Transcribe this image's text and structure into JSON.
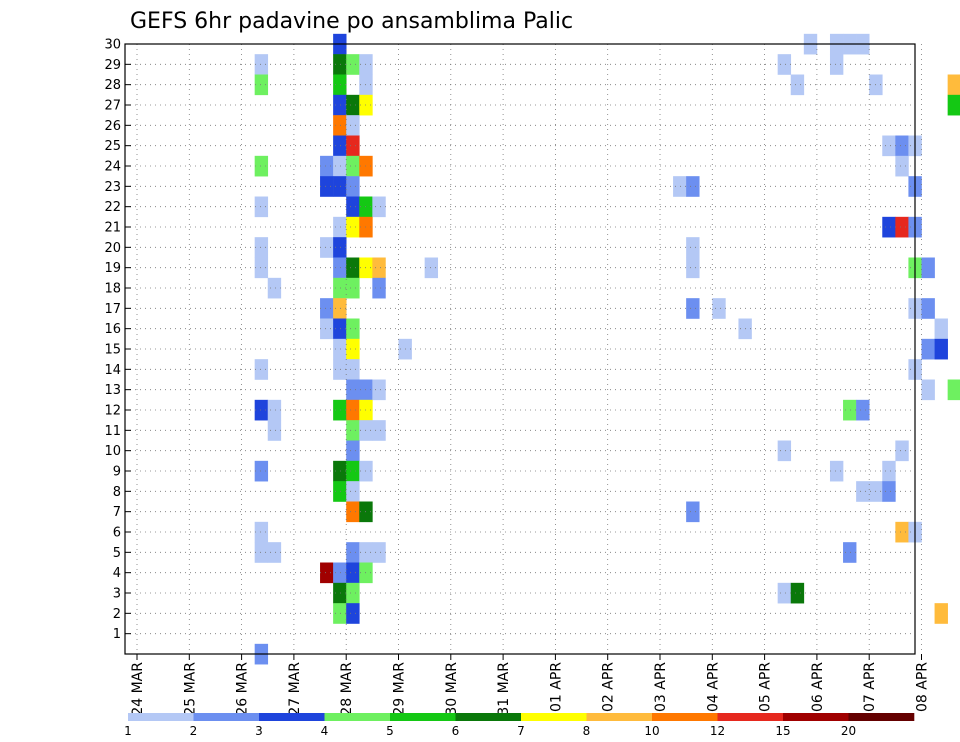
{
  "chart_data": {
    "type": "heatmap",
    "title": "GEFS 6hr padavine po ansamblima Palic",
    "y_ticks": [
      "1",
      "2",
      "3",
      "4",
      "5",
      "6",
      "7",
      "8",
      "9",
      "10",
      "11",
      "12",
      "13",
      "14",
      "15",
      "16",
      "17",
      "18",
      "19",
      "20",
      "21",
      "22",
      "23",
      "24",
      "25",
      "26",
      "27",
      "28",
      "29",
      "30"
    ],
    "ylim": [
      0,
      30
    ],
    "x_ticks": [
      "24 MAR",
      "25 MAR",
      "26 MAR",
      "27 MAR",
      "28 MAR",
      "29 MAR",
      "30 MAR",
      "31 MAR",
      "01 APR",
      "02 APR",
      "03 APR",
      "04 APR",
      "05 APR",
      "06 APR",
      "07 APR",
      "08 APR"
    ],
    "steps_per_day": 4,
    "grid": true,
    "colorbar": {
      "position": "bottom",
      "labels": [
        "1",
        "2",
        "3",
        "4",
        "5",
        "6",
        "7",
        "8",
        "10",
        "12",
        "15",
        "20"
      ],
      "colors": [
        "#b4c8f5",
        "#6c8ff0",
        "#1e44dc",
        "#6ef060",
        "#14c814",
        "#0a780a",
        "#ffff00",
        "#ffbb3c",
        "#ff7800",
        "#e6281e",
        "#a00000",
        "#640000"
      ]
    },
    "cells": [
      {
        "m": 30,
        "s": 15,
        "c": 3
      },
      {
        "m": 30,
        "s": 51,
        "c": 1
      },
      {
        "m": 30,
        "s": 53,
        "c": 1
      },
      {
        "m": 30,
        "s": 54,
        "c": 1
      },
      {
        "m": 30,
        "s": 55,
        "c": 1
      },
      {
        "m": 30,
        "s": 92,
        "c": 1
      },
      {
        "m": 29,
        "s": 9,
        "c": 1
      },
      {
        "m": 29,
        "s": 15,
        "c": 6
      },
      {
        "m": 29,
        "s": 16,
        "c": 4
      },
      {
        "m": 29,
        "s": 17,
        "c": 1
      },
      {
        "m": 29,
        "s": 49,
        "c": 1
      },
      {
        "m": 29,
        "s": 53,
        "c": 1
      },
      {
        "m": 29,
        "s": 64,
        "c": 4
      },
      {
        "m": 29,
        "s": 65,
        "c": 1
      },
      {
        "m": 29,
        "s": 77,
        "c": 1
      },
      {
        "m": 29,
        "s": 78,
        "c": 3
      },
      {
        "m": 29,
        "s": 80,
        "c": 2
      },
      {
        "m": 29,
        "s": 90,
        "c": 1
      },
      {
        "m": 29,
        "s": 96,
        "c": 2
      },
      {
        "m": 29,
        "s": 97,
        "c": 3
      },
      {
        "m": 29,
        "s": 98,
        "c": 1
      },
      {
        "m": 29,
        "s": 100,
        "c": 2
      },
      {
        "m": 28,
        "s": 9,
        "c": 4
      },
      {
        "m": 28,
        "s": 15,
        "c": 5
      },
      {
        "m": 28,
        "s": 17,
        "c": 1
      },
      {
        "m": 28,
        "s": 50,
        "c": 1
      },
      {
        "m": 28,
        "s": 56,
        "c": 1
      },
      {
        "m": 28,
        "s": 62,
        "c": 8
      },
      {
        "m": 28,
        "s": 63,
        "c": 8
      },
      {
        "m": 28,
        "s": 67,
        "c": 1
      },
      {
        "m": 28,
        "s": 97,
        "c": 2
      },
      {
        "m": 28,
        "s": 100,
        "c": 2
      },
      {
        "m": 27,
        "s": 15,
        "c": 3
      },
      {
        "m": 27,
        "s": 16,
        "c": 6
      },
      {
        "m": 27,
        "s": 17,
        "c": 7
      },
      {
        "m": 27,
        "s": 62,
        "c": 5
      },
      {
        "m": 26,
        "s": 15,
        "c": 9
      },
      {
        "m": 26,
        "s": 16,
        "c": 1
      },
      {
        "m": 26,
        "s": 69,
        "c": 6
      },
      {
        "m": 25,
        "s": 15,
        "c": 3
      },
      {
        "m": 25,
        "s": 16,
        "c": 10
      },
      {
        "m": 25,
        "s": 57,
        "c": 1
      },
      {
        "m": 25,
        "s": 58,
        "c": 2
      },
      {
        "m": 25,
        "s": 59,
        "c": 1
      },
      {
        "m": 24,
        "s": 9,
        "c": 4
      },
      {
        "m": 24,
        "s": 14,
        "c": 2
      },
      {
        "m": 24,
        "s": 15,
        "c": 1
      },
      {
        "m": 24,
        "s": 16,
        "c": 4
      },
      {
        "m": 24,
        "s": 17,
        "c": 9
      },
      {
        "m": 24,
        "s": 58,
        "c": 1
      },
      {
        "m": 24,
        "s": 84,
        "c": 3
      },
      {
        "m": 24,
        "s": 88,
        "c": 1
      },
      {
        "m": 23,
        "s": 14,
        "c": 3
      },
      {
        "m": 23,
        "s": 15,
        "c": 3
      },
      {
        "m": 23,
        "s": 16,
        "c": 2
      },
      {
        "m": 23,
        "s": 41,
        "c": 1
      },
      {
        "m": 23,
        "s": 42,
        "c": 2
      },
      {
        "m": 23,
        "s": 59,
        "c": 2
      },
      {
        "m": 23,
        "s": 76,
        "c": 2
      },
      {
        "m": 23,
        "s": 84,
        "c": 1
      },
      {
        "m": 23,
        "s": 85,
        "c": 1
      },
      {
        "m": 22,
        "s": 9,
        "c": 1
      },
      {
        "m": 22,
        "s": 16,
        "c": 3
      },
      {
        "m": 22,
        "s": 17,
        "c": 5
      },
      {
        "m": 22,
        "s": 18,
        "c": 1
      },
      {
        "m": 22,
        "s": 66,
        "c": 1
      },
      {
        "m": 22,
        "s": 97,
        "c": 2
      },
      {
        "m": 22,
        "s": 98,
        "c": 3
      },
      {
        "m": 21,
        "s": 15,
        "c": 1
      },
      {
        "m": 21,
        "s": 16,
        "c": 7
      },
      {
        "m": 21,
        "s": 17,
        "c": 9
      },
      {
        "m": 21,
        "s": 57,
        "c": 3
      },
      {
        "m": 21,
        "s": 58,
        "c": 10
      },
      {
        "m": 21,
        "s": 59,
        "c": 2
      },
      {
        "m": 21,
        "s": 82,
        "c": 1
      },
      {
        "m": 20,
        "s": 9,
        "c": 1
      },
      {
        "m": 20,
        "s": 14,
        "c": 1
      },
      {
        "m": 20,
        "s": 15,
        "c": 3
      },
      {
        "m": 20,
        "s": 42,
        "c": 1
      },
      {
        "m": 20,
        "s": 65,
        "c": 3
      },
      {
        "m": 20,
        "s": 66,
        "c": 2
      },
      {
        "m": 20,
        "s": 67,
        "c": 2
      },
      {
        "m": 19,
        "s": 9,
        "c": 1
      },
      {
        "m": 19,
        "s": 15,
        "c": 2
      },
      {
        "m": 19,
        "s": 16,
        "c": 6
      },
      {
        "m": 19,
        "s": 17,
        "c": 7
      },
      {
        "m": 19,
        "s": 18,
        "c": 8
      },
      {
        "m": 19,
        "s": 22,
        "c": 1
      },
      {
        "m": 19,
        "s": 42,
        "c": 1
      },
      {
        "m": 19,
        "s": 59,
        "c": 4
      },
      {
        "m": 19,
        "s": 60,
        "c": 2
      },
      {
        "m": 19,
        "s": 88,
        "c": 1
      },
      {
        "m": 19,
        "s": 89,
        "c": 3
      },
      {
        "m": 19,
        "s": 91,
        "c": 1
      },
      {
        "m": 18,
        "s": 10,
        "c": 1
      },
      {
        "m": 18,
        "s": 15,
        "c": 4
      },
      {
        "m": 18,
        "s": 16,
        "c": 4
      },
      {
        "m": 18,
        "s": 18,
        "c": 2
      },
      {
        "m": 18,
        "s": 75,
        "c": 2
      },
      {
        "m": 18,
        "s": 76,
        "c": 11
      },
      {
        "m": 18,
        "s": 77,
        "c": 12
      },
      {
        "m": 18,
        "s": 78,
        "c": 11
      },
      {
        "m": 18,
        "s": 79,
        "c": 1
      },
      {
        "m": 18,
        "s": 82,
        "c": 6
      },
      {
        "m": 18,
        "s": 83,
        "c": 5
      },
      {
        "m": 17,
        "s": 14,
        "c": 2
      },
      {
        "m": 17,
        "s": 15,
        "c": 8
      },
      {
        "m": 17,
        "s": 42,
        "c": 2
      },
      {
        "m": 17,
        "s": 44,
        "c": 1
      },
      {
        "m": 17,
        "s": 59,
        "c": 1
      },
      {
        "m": 17,
        "s": 60,
        "c": 2
      },
      {
        "m": 17,
        "s": 66,
        "c": 1
      },
      {
        "m": 17,
        "s": 97,
        "c": 2
      },
      {
        "m": 17,
        "s": 98,
        "c": 3
      },
      {
        "m": 17,
        "s": 99,
        "c": 2
      },
      {
        "m": 16,
        "s": 14,
        "c": 1
      },
      {
        "m": 16,
        "s": 15,
        "c": 3
      },
      {
        "m": 16,
        "s": 16,
        "c": 4
      },
      {
        "m": 16,
        "s": 46,
        "c": 1
      },
      {
        "m": 16,
        "s": 61,
        "c": 1
      },
      {
        "m": 16,
        "s": 66,
        "c": 1
      },
      {
        "m": 16,
        "s": 67,
        "c": 7
      },
      {
        "m": 16,
        "s": 97,
        "c": 5
      },
      {
        "m": 16,
        "s": 98,
        "c": 1
      },
      {
        "m": 15,
        "s": 15,
        "c": 1
      },
      {
        "m": 15,
        "s": 16,
        "c": 7
      },
      {
        "m": 15,
        "s": 20,
        "c": 1
      },
      {
        "m": 15,
        "s": 60,
        "c": 2
      },
      {
        "m": 15,
        "s": 61,
        "c": 3
      },
      {
        "m": 15,
        "s": 66,
        "c": 9
      },
      {
        "m": 15,
        "s": 67,
        "c": 2
      },
      {
        "m": 14,
        "s": 9,
        "c": 1
      },
      {
        "m": 14,
        "s": 15,
        "c": 1
      },
      {
        "m": 14,
        "s": 16,
        "c": 1
      },
      {
        "m": 14,
        "s": 59,
        "c": 1
      },
      {
        "m": 13,
        "s": 16,
        "c": 2
      },
      {
        "m": 13,
        "s": 17,
        "c": 2
      },
      {
        "m": 13,
        "s": 18,
        "c": 1
      },
      {
        "m": 13,
        "s": 60,
        "c": 1
      },
      {
        "m": 13,
        "s": 62,
        "c": 4
      },
      {
        "m": 13,
        "s": 63,
        "c": 6
      },
      {
        "m": 13,
        "s": 64,
        "c": 2
      },
      {
        "m": 12,
        "s": 9,
        "c": 3
      },
      {
        "m": 12,
        "s": 10,
        "c": 1
      },
      {
        "m": 12,
        "s": 15,
        "c": 5
      },
      {
        "m": 12,
        "s": 16,
        "c": 9
      },
      {
        "m": 12,
        "s": 17,
        "c": 7
      },
      {
        "m": 12,
        "s": 54,
        "c": 4
      },
      {
        "m": 12,
        "s": 55,
        "c": 2
      },
      {
        "m": 12,
        "s": 63,
        "c": 1
      },
      {
        "m": 12,
        "s": 76,
        "c": 6
      },
      {
        "m": 12,
        "s": 81,
        "c": 11
      },
      {
        "m": 12,
        "s": 82,
        "c": 7
      },
      {
        "m": 12,
        "s": 83,
        "c": 1
      },
      {
        "m": 11,
        "s": 10,
        "c": 1
      },
      {
        "m": 11,
        "s": 16,
        "c": 4
      },
      {
        "m": 11,
        "s": 17,
        "c": 1
      },
      {
        "m": 11,
        "s": 18,
        "c": 1
      },
      {
        "m": 11,
        "s": 93,
        "c": 1
      },
      {
        "m": 11,
        "s": 97,
        "c": 11
      },
      {
        "m": 11,
        "s": 98,
        "c": 7
      },
      {
        "m": 10,
        "s": 16,
        "c": 2
      },
      {
        "m": 10,
        "s": 49,
        "c": 1
      },
      {
        "m": 10,
        "s": 58,
        "c": 1
      },
      {
        "m": 10,
        "s": 90,
        "c": 5
      },
      {
        "m": 10,
        "s": 91,
        "c": 1
      },
      {
        "m": 9,
        "s": 9,
        "c": 2
      },
      {
        "m": 9,
        "s": 15,
        "c": 6
      },
      {
        "m": 9,
        "s": 16,
        "c": 5
      },
      {
        "m": 9,
        "s": 17,
        "c": 1
      },
      {
        "m": 9,
        "s": 53,
        "c": 1
      },
      {
        "m": 9,
        "s": 57,
        "c": 1
      },
      {
        "m": 9,
        "s": 91,
        "c": 1
      },
      {
        "m": 9,
        "s": 97,
        "c": 2
      },
      {
        "m": 9,
        "s": 98,
        "c": 1
      },
      {
        "m": 9,
        "s": 99,
        "c": 1
      },
      {
        "m": 9,
        "s": 102,
        "c": 1
      },
      {
        "m": 8,
        "s": 15,
        "c": 5
      },
      {
        "m": 8,
        "s": 16,
        "c": 1
      },
      {
        "m": 8,
        "s": 55,
        "c": 1
      },
      {
        "m": 8,
        "s": 56,
        "c": 1
      },
      {
        "m": 8,
        "s": 57,
        "c": 2
      },
      {
        "m": 8,
        "s": 70,
        "c": 3
      },
      {
        "m": 8,
        "s": 71,
        "c": 1
      },
      {
        "m": 8,
        "s": 91,
        "c": 5
      },
      {
        "m": 7,
        "s": 16,
        "c": 9
      },
      {
        "m": 7,
        "s": 17,
        "c": 6
      },
      {
        "m": 7,
        "s": 42,
        "c": 2
      },
      {
        "m": 7,
        "s": 88,
        "c": 1
      },
      {
        "m": 6,
        "s": 9,
        "c": 1
      },
      {
        "m": 6,
        "s": 58,
        "c": 8
      },
      {
        "m": 6,
        "s": 59,
        "c": 1
      },
      {
        "m": 5,
        "s": 9,
        "c": 1
      },
      {
        "m": 5,
        "s": 10,
        "c": 1
      },
      {
        "m": 5,
        "s": 16,
        "c": 2
      },
      {
        "m": 5,
        "s": 17,
        "c": 1
      },
      {
        "m": 5,
        "s": 18,
        "c": 1
      },
      {
        "m": 5,
        "s": 54,
        "c": 2
      },
      {
        "m": 5,
        "s": 64,
        "c": 2
      },
      {
        "m": 5,
        "s": 66,
        "c": 3
      },
      {
        "m": 5,
        "s": 67,
        "c": 6
      },
      {
        "m": 4,
        "s": 14,
        "c": 11
      },
      {
        "m": 4,
        "s": 15,
        "c": 2
      },
      {
        "m": 4,
        "s": 16,
        "c": 3
      },
      {
        "m": 4,
        "s": 17,
        "c": 4
      },
      {
        "m": 4,
        "s": 95,
        "c": 2
      },
      {
        "m": 3,
        "s": 15,
        "c": 6
      },
      {
        "m": 3,
        "s": 16,
        "c": 4
      },
      {
        "m": 3,
        "s": 49,
        "c": 1
      },
      {
        "m": 3,
        "s": 50,
        "c": 6
      },
      {
        "m": 3,
        "s": 63,
        "c": 1
      },
      {
        "m": 3,
        "s": 65,
        "c": 9
      },
      {
        "m": 3,
        "s": 66,
        "c": 3
      },
      {
        "m": 2,
        "s": 15,
        "c": 4
      },
      {
        "m": 2,
        "s": 16,
        "c": 3
      },
      {
        "m": 2,
        "s": 61,
        "c": 8
      },
      {
        "m": 2,
        "s": 63,
        "c": 1
      },
      {
        "m": 2,
        "s": 64,
        "c": 8
      },
      {
        "m": 2,
        "s": 65,
        "c": 3
      },
      {
        "m": 2,
        "s": 69,
        "c": 2
      },
      {
        "m": 2,
        "s": 103,
        "c": 1
      },
      {
        "m": 0,
        "s": 9,
        "c": 2
      },
      {
        "m": 0,
        "s": 77,
        "c": 5
      },
      {
        "m": 0,
        "s": 78,
        "c": 4
      }
    ]
  }
}
